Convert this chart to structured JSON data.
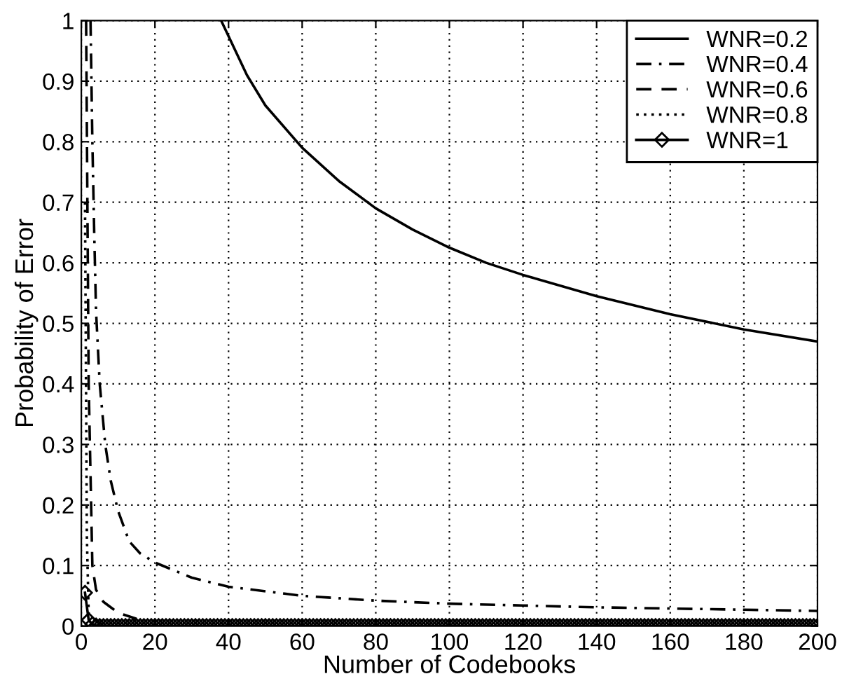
{
  "chart_data": {
    "type": "line",
    "xlabel": "Number of Codebooks",
    "ylabel": "Probability of Error",
    "xlim": [
      0,
      200
    ],
    "xticks": [
      0,
      20,
      40,
      60,
      80,
      100,
      120,
      140,
      160,
      180,
      200
    ],
    "ylim": [
      0,
      1
    ],
    "yticks": [
      0,
      0.1,
      0.2,
      0.3,
      0.4,
      0.5,
      0.6,
      0.7,
      0.8,
      0.9,
      1
    ],
    "grid": true,
    "legend": "top right",
    "series": [
      {
        "name": "WNR=0.2",
        "color": "#000000",
        "line_style": "solid",
        "marker": "none",
        "x": [
          38,
          45,
          50,
          60,
          70,
          80,
          90,
          100,
          110,
          120,
          140,
          160,
          180,
          200
        ],
        "values": [
          1.0,
          0.91,
          0.86,
          0.79,
          0.735,
          0.69,
          0.655,
          0.625,
          0.6,
          0.58,
          0.545,
          0.515,
          0.49,
          0.47
        ]
      },
      {
        "name": "WNR=0.4",
        "color": "#000000",
        "line_style": "dashdot",
        "marker": "none",
        "x": [
          2.5,
          3,
          3.5,
          4,
          5,
          6.5,
          8,
          10,
          13,
          16,
          20,
          30,
          40,
          60,
          80,
          100,
          120,
          140,
          160,
          180,
          200
        ],
        "values": [
          1.0,
          0.8,
          0.65,
          0.52,
          0.4,
          0.3,
          0.24,
          0.19,
          0.14,
          0.12,
          0.105,
          0.08,
          0.065,
          0.05,
          0.042,
          0.037,
          0.034,
          0.031,
          0.029,
          0.027,
          0.025
        ]
      },
      {
        "name": "WNR=0.6",
        "color": "#000000",
        "line_style": "dashed",
        "marker": "none",
        "x": [
          1.3,
          2,
          3,
          4,
          6,
          10,
          15
        ],
        "values": [
          1.0,
          0.4,
          0.1,
          0.06,
          0.04,
          0.022,
          0.012
        ]
      },
      {
        "name": "WNR=0.8",
        "color": "#000000",
        "line_style": "dotted",
        "marker": "none",
        "x": [
          1,
          1.5,
          2
        ],
        "values": [
          0.7,
          0.15,
          0.02
        ]
      },
      {
        "name": "WNR=1",
        "color": "#000000",
        "line_style": "solid",
        "marker": "diamond",
        "x": [
          1,
          2,
          3,
          4,
          5,
          6,
          7,
          8,
          9,
          10,
          11,
          12,
          13,
          14,
          15,
          16,
          17,
          18,
          19,
          20,
          21,
          22,
          23,
          24,
          25,
          26,
          27,
          28,
          29,
          30,
          31,
          32,
          33,
          34,
          35,
          36,
          37,
          38,
          39,
          40,
          41,
          42,
          43,
          44,
          45,
          46,
          47,
          48,
          49,
          50,
          51,
          52,
          53,
          54,
          55,
          56,
          57,
          58,
          59,
          60,
          61,
          62,
          63,
          64,
          65,
          66,
          67,
          68,
          69,
          70,
          71,
          72,
          73,
          74,
          75,
          76,
          77,
          78,
          79,
          80,
          81,
          82,
          83,
          84,
          85,
          86,
          87,
          88,
          89,
          90,
          91,
          92,
          93,
          94,
          95,
          96,
          97,
          98,
          99,
          100,
          101,
          102,
          103,
          104,
          105,
          106,
          107,
          108,
          109,
          110,
          111,
          112,
          113,
          114,
          115,
          116,
          117,
          118,
          119,
          120,
          121,
          122,
          123,
          124,
          125,
          126,
          127,
          128,
          129,
          130,
          131,
          132,
          133,
          134,
          135,
          136,
          137,
          138,
          139,
          140,
          141,
          142,
          143,
          144,
          145,
          146,
          147,
          148,
          149,
          150,
          151,
          152,
          153,
          154,
          155,
          156,
          157,
          158,
          159,
          160,
          161,
          162,
          163,
          164,
          165,
          166,
          167,
          168,
          169,
          170,
          171,
          172,
          173,
          174,
          175,
          176,
          177,
          178,
          179,
          180,
          181,
          182,
          183,
          184,
          185,
          186,
          187,
          188,
          189,
          190,
          191,
          192,
          193,
          194,
          195,
          196,
          197,
          198,
          199,
          200
        ],
        "values": [
          0.055,
          0.01,
          0.003,
          0.001,
          0,
          0,
          0,
          0,
          0,
          0,
          0,
          0,
          0,
          0,
          0,
          0,
          0,
          0,
          0,
          0,
          0,
          0,
          0,
          0,
          0,
          0,
          0,
          0,
          0,
          0,
          0,
          0,
          0,
          0,
          0,
          0,
          0,
          0,
          0,
          0,
          0,
          0,
          0,
          0,
          0,
          0,
          0,
          0,
          0,
          0,
          0,
          0,
          0,
          0,
          0,
          0,
          0,
          0,
          0,
          0,
          0,
          0,
          0,
          0,
          0,
          0,
          0,
          0,
          0,
          0,
          0,
          0,
          0,
          0,
          0,
          0,
          0,
          0,
          0,
          0,
          0,
          0,
          0,
          0,
          0,
          0,
          0,
          0,
          0,
          0,
          0,
          0,
          0,
          0,
          0,
          0,
          0,
          0,
          0,
          0,
          0,
          0,
          0,
          0,
          0,
          0,
          0,
          0,
          0,
          0,
          0,
          0,
          0,
          0,
          0,
          0,
          0,
          0,
          0,
          0,
          0,
          0,
          0,
          0,
          0,
          0,
          0,
          0,
          0,
          0,
          0,
          0,
          0,
          0,
          0,
          0,
          0,
          0,
          0,
          0,
          0,
          0,
          0,
          0,
          0,
          0,
          0,
          0,
          0,
          0,
          0,
          0,
          0,
          0,
          0,
          0,
          0,
          0,
          0,
          0,
          0,
          0,
          0,
          0,
          0,
          0,
          0,
          0,
          0,
          0,
          0,
          0,
          0,
          0,
          0,
          0,
          0,
          0,
          0,
          0,
          0,
          0,
          0,
          0,
          0,
          0,
          0,
          0,
          0,
          0,
          0,
          0,
          0,
          0,
          0,
          0,
          0,
          0,
          0,
          0
        ]
      }
    ]
  }
}
